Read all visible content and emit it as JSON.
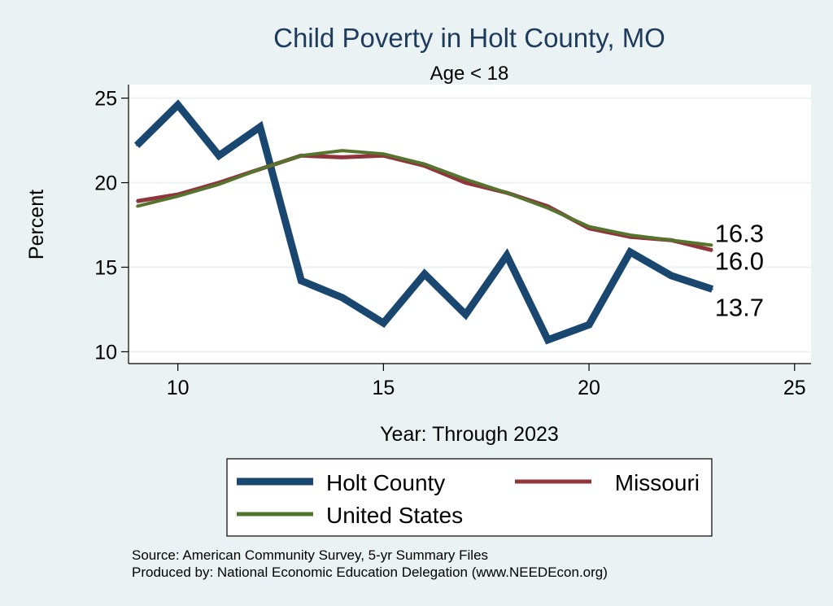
{
  "chart_data": {
    "type": "line",
    "title": "Child Poverty in Holt County, MO",
    "subtitle": "Age < 18",
    "xlabel": "Year: Through 2023",
    "ylabel": "Percent",
    "xlim": [
      8.8,
      25.4
    ],
    "ylim": [
      9.3,
      25.8
    ],
    "xticks": [
      10,
      15,
      20,
      25
    ],
    "yticks": [
      10,
      15,
      20,
      25
    ],
    "x": [
      9,
      10,
      11,
      12,
      13,
      14,
      15,
      16,
      17,
      18,
      19,
      20,
      21,
      22,
      23
    ],
    "series": [
      {
        "name": "Holt County",
        "color": "#1a476f",
        "values": [
          22.2,
          24.6,
          21.6,
          23.3,
          14.2,
          13.2,
          11.7,
          14.6,
          12.2,
          15.7,
          10.7,
          11.6,
          15.9,
          14.5,
          13.7
        ],
        "end_label": "13.7"
      },
      {
        "name": "Missouri",
        "color": "#90353b",
        "values": [
          18.9,
          19.3,
          20.0,
          20.8,
          21.6,
          21.5,
          21.6,
          21.0,
          20.0,
          19.4,
          18.6,
          17.3,
          16.8,
          16.6,
          16.0
        ],
        "end_label": "16.0"
      },
      {
        "name": "United States",
        "color": "#55752f",
        "values": [
          18.6,
          19.2,
          19.9,
          20.8,
          21.6,
          21.9,
          21.7,
          21.1,
          20.2,
          19.4,
          18.5,
          17.4,
          16.9,
          16.6,
          16.3
        ],
        "end_label": "16.3"
      }
    ],
    "legend": [
      "Holt County",
      "Missouri",
      "United States"
    ],
    "grid": true,
    "legend_position": "bottom"
  },
  "footer": {
    "source": "Source: American Community Survey, 5-yr Summary Files",
    "produced_by": "Produced by: National Economic Education Delegation (www.NEEDEcon.org)"
  },
  "colors": {
    "background": "#eaf2f3",
    "plot_background": "#ffffff",
    "grid": "#eaf2f3",
    "title": "#1f3b5c"
  }
}
